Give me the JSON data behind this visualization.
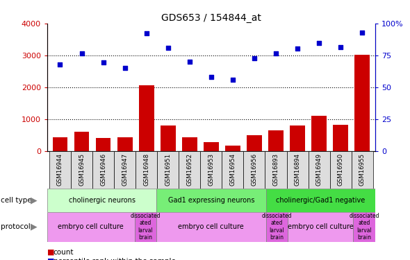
{
  "title": "GDS653 / 154844_at",
  "samples": [
    "GSM16944",
    "GSM16945",
    "GSM16946",
    "GSM16947",
    "GSM16948",
    "GSM16951",
    "GSM16952",
    "GSM16953",
    "GSM16954",
    "GSM16956",
    "GSM16893",
    "GSM16894",
    "GSM16949",
    "GSM16950",
    "GSM16955"
  ],
  "bar_values": [
    430,
    600,
    410,
    430,
    2050,
    790,
    430,
    270,
    160,
    490,
    640,
    800,
    1090,
    820,
    3020
  ],
  "scatter_values": [
    68,
    76.5,
    69.2,
    65,
    92.5,
    81,
    70,
    58.2,
    55.7,
    72.5,
    76.5,
    80.2,
    84.5,
    81.2,
    93
  ],
  "bar_color": "#cc0000",
  "scatter_color": "#0000cc",
  "ylim_left": [
    0,
    4000
  ],
  "ylim_right": [
    0,
    100
  ],
  "yticks_left": [
    0,
    1000,
    2000,
    3000,
    4000
  ],
  "ytick_labels_left": [
    "0",
    "1000",
    "2000",
    "3000",
    "4000"
  ],
  "yticks_right": [
    0,
    25,
    50,
    75,
    100
  ],
  "ytick_labels_right": [
    "0",
    "25",
    "50",
    "75",
    "100%"
  ],
  "cell_groups": [
    {
      "label": "cholinergic neurons",
      "start": 0,
      "end": 4,
      "color": "#ccffcc"
    },
    {
      "label": "Gad1 expressing neurons",
      "start": 5,
      "end": 9,
      "color": "#77ee77"
    },
    {
      "label": "cholinergic/Gad1 negative",
      "start": 10,
      "end": 14,
      "color": "#44dd44"
    }
  ],
  "protocol_groups": [
    {
      "label": "embryo cell culture",
      "start": 0,
      "end": 3,
      "color": "#ee99ee"
    },
    {
      "label": "dissociated\nated\nlarval\nbrain",
      "start": 4,
      "end": 4,
      "color": "#dd66dd"
    },
    {
      "label": "embryo cell culture",
      "start": 5,
      "end": 9,
      "color": "#ee99ee"
    },
    {
      "label": "dissociated\nated\nlarval\nbrain",
      "start": 10,
      "end": 10,
      "color": "#dd66dd"
    },
    {
      "label": "embryo cell culture",
      "start": 11,
      "end": 13,
      "color": "#ee99ee"
    },
    {
      "label": "dissociated\nated\nlarval\nbrain",
      "start": 14,
      "end": 14,
      "color": "#dd66dd"
    }
  ]
}
